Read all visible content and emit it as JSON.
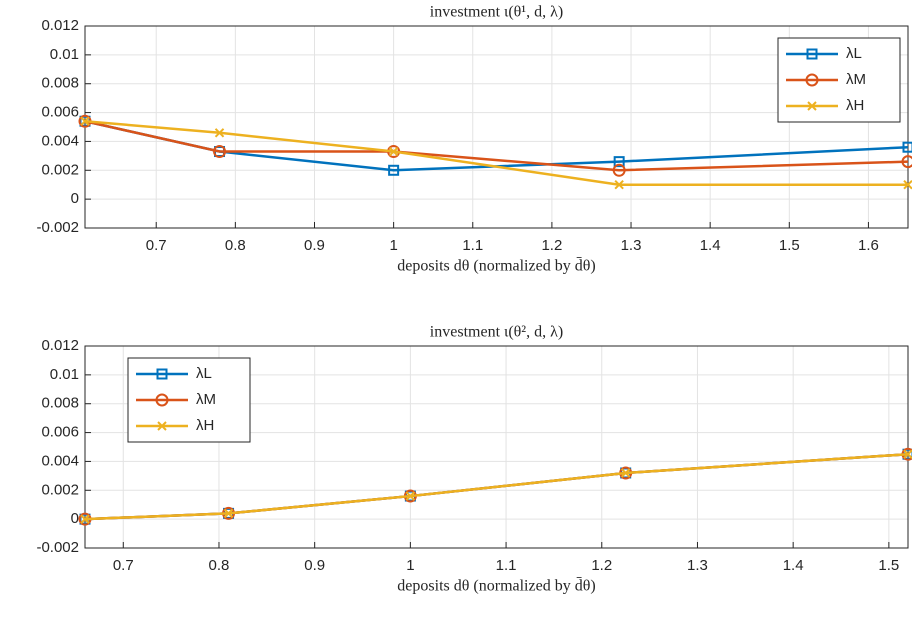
{
  "chart_data": [
    {
      "type": "line",
      "title": "investment ι(θ¹, d, λ)",
      "x_label": "deposits dθ (normalized by d̄θ)",
      "x": [
        0.61,
        0.78,
        1.0,
        1.285,
        1.65
      ],
      "series": [
        {
          "name": "λL",
          "color": "#0072BD",
          "marker": "square",
          "values": [
            0.0054,
            0.0033,
            0.002,
            0.0026,
            0.0036
          ]
        },
        {
          "name": "λM",
          "color": "#D95319",
          "marker": "circle",
          "values": [
            0.0054,
            0.0033,
            0.0033,
            0.002,
            0.0026
          ]
        },
        {
          "name": "λH",
          "color": "#EDB120",
          "marker": "x",
          "values": [
            0.0054,
            0.0046,
            0.0033,
            0.001,
            0.001
          ]
        }
      ],
      "xlim": [
        0.61,
        1.65
      ],
      "xticks": [
        0.7,
        0.8,
        0.9,
        1,
        1.1,
        1.2,
        1.3,
        1.4,
        1.5,
        1.6
      ],
      "ylim": [
        -0.002,
        0.012
      ],
      "yticks": [
        -0.002,
        0,
        0.002,
        0.004,
        0.006,
        0.008,
        0.01,
        0.012
      ],
      "grid": true,
      "legend": "upper right"
    },
    {
      "type": "line",
      "title": "investment ι(θ², d, λ)",
      "x_label": "deposits dθ (normalized by d̄θ)",
      "x": [
        0.66,
        0.81,
        1.0,
        1.225,
        1.52
      ],
      "series": [
        {
          "name": "λL",
          "color": "#0072BD",
          "marker": "square",
          "values": [
            0,
            0.0004,
            0.0016,
            0.0032,
            0.0045
          ]
        },
        {
          "name": "λM",
          "color": "#D95319",
          "marker": "circle",
          "values": [
            0,
            0.0004,
            0.0016,
            0.0032,
            0.0045
          ]
        },
        {
          "name": "λH",
          "color": "#EDB120",
          "marker": "x",
          "values": [
            0,
            0.0004,
            0.0016,
            0.0032,
            0.0045
          ]
        }
      ],
      "xlim": [
        0.66,
        1.52
      ],
      "xticks": [
        0.7,
        0.8,
        0.9,
        1,
        1.1,
        1.2,
        1.3,
        1.4,
        1.5
      ],
      "ylim": [
        -0.002,
        0.012
      ],
      "yticks": [
        -0.002,
        0,
        0.002,
        0.004,
        0.006,
        0.008,
        0.01,
        0.012
      ],
      "grid": true,
      "legend": "upper left"
    }
  ]
}
